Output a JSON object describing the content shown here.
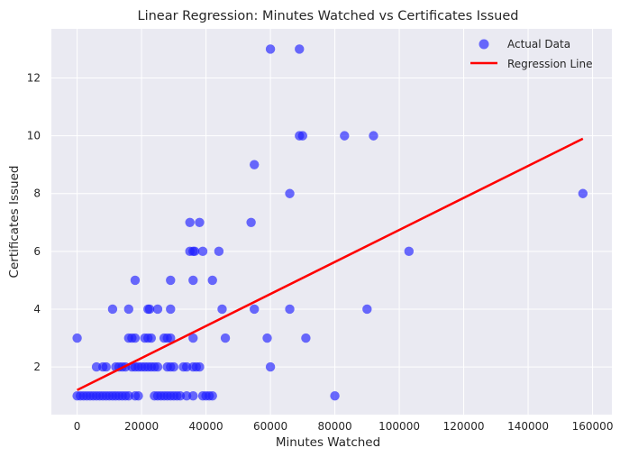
{
  "chart_data": {
    "type": "scatter",
    "title": "Linear Regression: Minutes Watched vs Certificates Issued",
    "xlabel": "Minutes Watched",
    "ylabel": "Certificates Issued",
    "xlim": [
      -8000,
      166000
    ],
    "ylim": [
      0.35,
      13.7
    ],
    "xticks": [
      0,
      20000,
      40000,
      60000,
      80000,
      100000,
      120000,
      140000,
      160000
    ],
    "yticks": [
      2,
      4,
      6,
      8,
      10,
      12
    ],
    "grid": true,
    "legend_position": "top-right",
    "colors": {
      "background": "#eaeaf2",
      "points": "#1f1fff",
      "regression": "#ff0000",
      "grid": "#ffffff",
      "text": "#262626"
    },
    "series": [
      {
        "name": "Actual Data",
        "kind": "scatter",
        "points": [
          [
            0,
            3
          ],
          [
            0,
            1
          ],
          [
            1000,
            1
          ],
          [
            2000,
            1
          ],
          [
            3000,
            1
          ],
          [
            4000,
            1
          ],
          [
            5000,
            1
          ],
          [
            6000,
            1
          ],
          [
            7000,
            1
          ],
          [
            8000,
            1
          ],
          [
            9000,
            1
          ],
          [
            10000,
            1
          ],
          [
            11000,
            1
          ],
          [
            12000,
            1
          ],
          [
            13000,
            1
          ],
          [
            14000,
            1
          ],
          [
            15000,
            1
          ],
          [
            16000,
            1
          ],
          [
            18000,
            1
          ],
          [
            19000,
            1
          ],
          [
            24000,
            1
          ],
          [
            25000,
            1
          ],
          [
            26000,
            1
          ],
          [
            27000,
            1
          ],
          [
            28000,
            1
          ],
          [
            29000,
            1
          ],
          [
            30000,
            1
          ],
          [
            31000,
            1
          ],
          [
            32000,
            1
          ],
          [
            34000,
            1
          ],
          [
            36000,
            1
          ],
          [
            39000,
            1
          ],
          [
            40000,
            1
          ],
          [
            41000,
            1
          ],
          [
            42000,
            1
          ],
          [
            80000,
            1
          ],
          [
            6000,
            2
          ],
          [
            8000,
            2
          ],
          [
            9000,
            2
          ],
          [
            12000,
            2
          ],
          [
            13000,
            2
          ],
          [
            14000,
            2
          ],
          [
            15000,
            2
          ],
          [
            17000,
            2
          ],
          [
            18000,
            2
          ],
          [
            19000,
            2
          ],
          [
            20000,
            2
          ],
          [
            21000,
            2
          ],
          [
            22000,
            2
          ],
          [
            23000,
            2
          ],
          [
            24000,
            2
          ],
          [
            25000,
            2
          ],
          [
            28000,
            2
          ],
          [
            29000,
            2
          ],
          [
            30000,
            2
          ],
          [
            33000,
            2
          ],
          [
            34000,
            2
          ],
          [
            36000,
            2
          ],
          [
            37000,
            2
          ],
          [
            38000,
            2
          ],
          [
            60000,
            2
          ],
          [
            16000,
            3
          ],
          [
            17000,
            3
          ],
          [
            18000,
            3
          ],
          [
            21000,
            3
          ],
          [
            22000,
            3
          ],
          [
            23000,
            3
          ],
          [
            27000,
            3
          ],
          [
            28000,
            3
          ],
          [
            29000,
            3
          ],
          [
            36000,
            3
          ],
          [
            46000,
            3
          ],
          [
            59000,
            3
          ],
          [
            71000,
            3
          ],
          [
            11000,
            4
          ],
          [
            16000,
            4
          ],
          [
            22000,
            4
          ],
          [
            22500,
            4
          ],
          [
            25000,
            4
          ],
          [
            29000,
            4
          ],
          [
            45000,
            4
          ],
          [
            55000,
            4
          ],
          [
            66000,
            4
          ],
          [
            90000,
            4
          ],
          [
            18000,
            5
          ],
          [
            29000,
            5
          ],
          [
            36000,
            5
          ],
          [
            42000,
            5
          ],
          [
            35000,
            6
          ],
          [
            36000,
            6
          ],
          [
            36500,
            6
          ],
          [
            39000,
            6
          ],
          [
            44000,
            6
          ],
          [
            103000,
            6
          ],
          [
            35000,
            7
          ],
          [
            38000,
            7
          ],
          [
            54000,
            7
          ],
          [
            55000,
            9
          ],
          [
            66000,
            8
          ],
          [
            157000,
            8
          ],
          [
            69000,
            10
          ],
          [
            70000,
            10
          ],
          [
            83000,
            10
          ],
          [
            92000,
            10
          ],
          [
            60000,
            13
          ],
          [
            69000,
            13
          ]
        ]
      },
      {
        "name": "Regression Line",
        "kind": "line",
        "points": [
          [
            0,
            1.2
          ],
          [
            157000,
            9.9
          ]
        ]
      }
    ]
  }
}
